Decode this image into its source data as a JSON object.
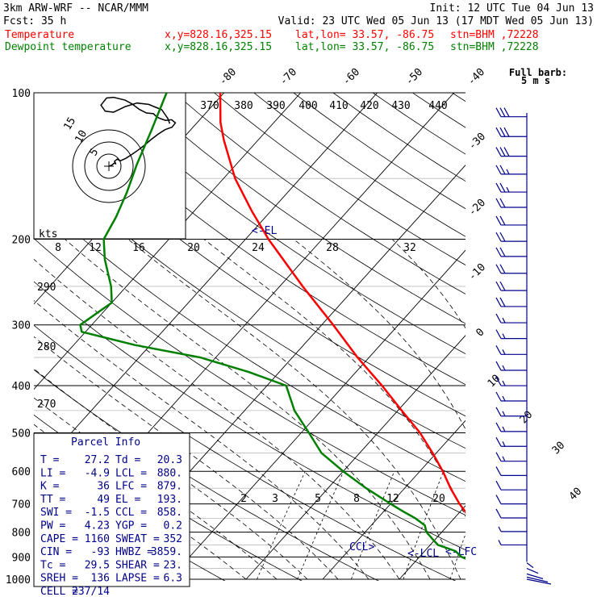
{
  "header": {
    "model": "3km ARW-WRF -- NCAR/MMM",
    "init": "Init: 12 UTC Tue 04 Jun 13",
    "fcst": "Fcst:    35 h",
    "valid": "Valid: 23 UTC Wed 05 Jun 13 (17 MDT Wed 05 Jun 13)"
  },
  "series_info": [
    {
      "label": "Temperature",
      "xy": "x,y=828.16,325.15",
      "latlon": "lat,lon= 33.57, -86.75",
      "stn": "stn=BHM ,72228",
      "color": "#ff0000"
    },
    {
      "label": "Dewpoint temperature",
      "xy": "x,y=828.16,325.15",
      "latlon": "lat,lon= 33.57, -86.75",
      "stn": "stn=BHM ,72228",
      "color": "#008000"
    }
  ],
  "chart_data": {
    "type": "line",
    "diagram": "skew-T log-P",
    "y_axis": {
      "scale": "log",
      "unit": "hPa",
      "range": [
        1000,
        100
      ],
      "ticks": [
        100,
        200,
        300,
        400,
        500,
        600,
        700,
        800,
        900,
        1000
      ]
    },
    "isotherm_labels": [
      "-80",
      "-70",
      "-60",
      "-50",
      "-40",
      "-30",
      "-20",
      "-10",
      "0",
      "10",
      "20",
      "30",
      "40"
    ],
    "theta_labels": [
      "370",
      "380",
      "390",
      "400",
      "410",
      "420",
      "430",
      "440"
    ],
    "mixing_ratio_labels": [
      "2",
      "3",
      "5",
      "8",
      "12",
      "20"
    ],
    "inset_speed_labels": [
      "8",
      "12",
      "16",
      "20",
      "24",
      "28",
      "32"
    ],
    "inset_rh_labels": [
      "290",
      "280",
      "270"
    ],
    "inset_units": "kts",
    "hodograph_rings": [
      "5",
      "10",
      "15"
    ],
    "annotations": [
      "<-EL",
      "CCL>",
      "<-LCL",
      "<-LFC"
    ],
    "series": [
      {
        "name": "Temperature",
        "color": "#ff0000",
        "points": [
          [
            1000,
            28.0
          ],
          [
            975,
            26.0
          ],
          [
            950,
            24.5
          ],
          [
            925,
            23.0
          ],
          [
            900,
            20.5
          ],
          [
            875,
            18.8
          ],
          [
            850,
            17.2
          ],
          [
            825,
            16.0
          ],
          [
            800,
            14.8
          ],
          [
            775,
            13.5
          ],
          [
            750,
            12.0
          ],
          [
            725,
            10.6
          ],
          [
            700,
            9.0
          ],
          [
            650,
            6.0
          ],
          [
            600,
            3.0
          ],
          [
            550,
            -0.5
          ],
          [
            500,
            -4.5
          ],
          [
            450,
            -9.5
          ],
          [
            400,
            -15.0
          ],
          [
            350,
            -21.5
          ],
          [
            300,
            -28.5
          ],
          [
            250,
            -37.0
          ],
          [
            200,
            -47.0
          ],
          [
            175,
            -52.5
          ],
          [
            150,
            -58.5
          ],
          [
            125,
            -64.5
          ],
          [
            115,
            -67.0
          ],
          [
            100,
            -70.5
          ]
        ]
      },
      {
        "name": "Dewpoint temperature",
        "color": "#008000",
        "points": [
          [
            1000,
            20.3
          ],
          [
            975,
            20.0
          ],
          [
            950,
            19.2
          ],
          [
            925,
            18.0
          ],
          [
            900,
            15.5
          ],
          [
            875,
            14.0
          ],
          [
            850,
            11.0
          ],
          [
            825,
            9.5
          ],
          [
            800,
            8.0
          ],
          [
            775,
            7.0
          ],
          [
            750,
            5.0
          ],
          [
            725,
            2.5
          ],
          [
            700,
            0.0
          ],
          [
            650,
            -5.0
          ],
          [
            600,
            -10.0
          ],
          [
            550,
            -15.0
          ],
          [
            500,
            -19.0
          ],
          [
            450,
            -23.5
          ],
          [
            400,
            -27.5
          ],
          [
            375,
            -34.0
          ],
          [
            350,
            -42.0
          ],
          [
            330,
            -52.0
          ],
          [
            310,
            -60.5
          ],
          [
            300,
            -61.5
          ],
          [
            270,
            -60.0
          ],
          [
            250,
            -62.0
          ],
          [
            220,
            -66.0
          ],
          [
            200,
            -68.5
          ],
          [
            180,
            -69.5
          ],
          [
            160,
            -71.0
          ],
          [
            140,
            -73.0
          ],
          [
            120,
            -75.0
          ],
          [
            100,
            -77.5
          ]
        ]
      }
    ],
    "wind_barbs": {
      "title": "Full barb:",
      "subtitle": "5 m s",
      "levels": [
        {
          "p": 112,
          "spd": 3.0,
          "dir": "w"
        },
        {
          "p": 123,
          "spd": 3.0,
          "dir": "w"
        },
        {
          "p": 135,
          "spd": 3.0,
          "dir": "w"
        },
        {
          "p": 147,
          "spd": 2.5,
          "dir": "w"
        },
        {
          "p": 160,
          "spd": 2.5,
          "dir": "w"
        },
        {
          "p": 172,
          "spd": 2.0,
          "dir": "w"
        },
        {
          "p": 187,
          "spd": 2.0,
          "dir": "w"
        },
        {
          "p": 202,
          "spd": 2.0,
          "dir": "w"
        },
        {
          "p": 217,
          "spd": 2.0,
          "dir": "w"
        },
        {
          "p": 235,
          "spd": 2.0,
          "dir": "w"
        },
        {
          "p": 255,
          "spd": 2.0,
          "dir": "w"
        },
        {
          "p": 275,
          "spd": 2.0,
          "dir": "w"
        },
        {
          "p": 297,
          "spd": 1.5,
          "dir": "w"
        },
        {
          "p": 320,
          "spd": 1.5,
          "dir": "w"
        },
        {
          "p": 345,
          "spd": 1.5,
          "dir": "w"
        },
        {
          "p": 372,
          "spd": 1.5,
          "dir": "w"
        },
        {
          "p": 400,
          "spd": 1.5,
          "dir": "w"
        },
        {
          "p": 430,
          "spd": 1.5,
          "dir": "w"
        },
        {
          "p": 462,
          "spd": 1.5,
          "dir": "w"
        },
        {
          "p": 497,
          "spd": 1.5,
          "dir": "w"
        },
        {
          "p": 533,
          "spd": 1.5,
          "dir": "w"
        },
        {
          "p": 572,
          "spd": 1.5,
          "dir": "w"
        },
        {
          "p": 612,
          "spd": 1.0,
          "dir": "w"
        },
        {
          "p": 655,
          "spd": 1.0,
          "dir": "w"
        },
        {
          "p": 700,
          "spd": 1.0,
          "dir": "w"
        },
        {
          "p": 748,
          "spd": 1.0,
          "dir": "w"
        },
        {
          "p": 798,
          "spd": 0.5,
          "dir": "w"
        },
        {
          "p": 850,
          "spd": 0.5,
          "dir": "w"
        }
      ]
    }
  },
  "parcel": {
    "title": "Parcel Info",
    "rows": [
      [
        "T  =",
        "27.2",
        "Td =",
        "20.3"
      ],
      [
        "LI =",
        "-4.9",
        "LCL =",
        "880."
      ],
      [
        "K  =",
        "36",
        "LFC =",
        "879."
      ],
      [
        "TT =",
        "49",
        "EL  =",
        "193."
      ],
      [
        "SWI =",
        "-1.5",
        "CCL =",
        "858."
      ],
      [
        "PW =",
        "4.23",
        "YGP =",
        "0.2"
      ],
      [
        "CAPE =",
        "1160",
        "SWEAT =",
        "352"
      ],
      [
        "CIN =",
        "-93",
        "HWBZ =",
        "3859."
      ],
      [
        "Tc =",
        "29.5",
        "SHEAR =",
        "23."
      ],
      [
        "SREH =",
        "136",
        "LAPSE =",
        "6.3"
      ],
      [
        "CELL =",
        "237/14",
        "",
        ""
      ]
    ]
  },
  "hodograph": {
    "path": [
      [
        0.0,
        0.0
      ],
      [
        0.6,
        0.3
      ],
      [
        1.2,
        0.9
      ],
      [
        1.5,
        0.6
      ],
      [
        1.2,
        1.4
      ],
      [
        1.8,
        2.0
      ],
      [
        2.4,
        1.5
      ],
      [
        3.6,
        2.2
      ],
      [
        4.8,
        3.2
      ],
      [
        6.2,
        4.5
      ],
      [
        7.5,
        5.8
      ],
      [
        9.0,
        7.5
      ],
      [
        10.5,
        9.0
      ],
      [
        12.0,
        10.3
      ],
      [
        13.5,
        11.0
      ],
      [
        14.2,
        12.2
      ],
      [
        13.4,
        13.1
      ],
      [
        12.1,
        12.9
      ],
      [
        11.0,
        13.4
      ],
      [
        10.2,
        13.9
      ],
      [
        9.5,
        14.8
      ],
      [
        8.0,
        15.0
      ],
      [
        6.5,
        16.0
      ],
      [
        5.0,
        17.5
      ],
      [
        3.5,
        18.6
      ],
      [
        1.0,
        19.4
      ],
      [
        -0.5,
        19.2
      ],
      [
        -1.7,
        17.2
      ],
      [
        -0.8,
        15.5
      ],
      [
        1.0,
        15.2
      ],
      [
        3.5,
        16.8
      ],
      [
        6.0,
        17.8
      ],
      [
        8.5,
        17.4
      ],
      [
        10.0,
        16.6
      ],
      [
        11.3,
        15.9
      ],
      [
        12.6,
        13.4
      ],
      [
        13.0,
        12.0
      ]
    ]
  }
}
